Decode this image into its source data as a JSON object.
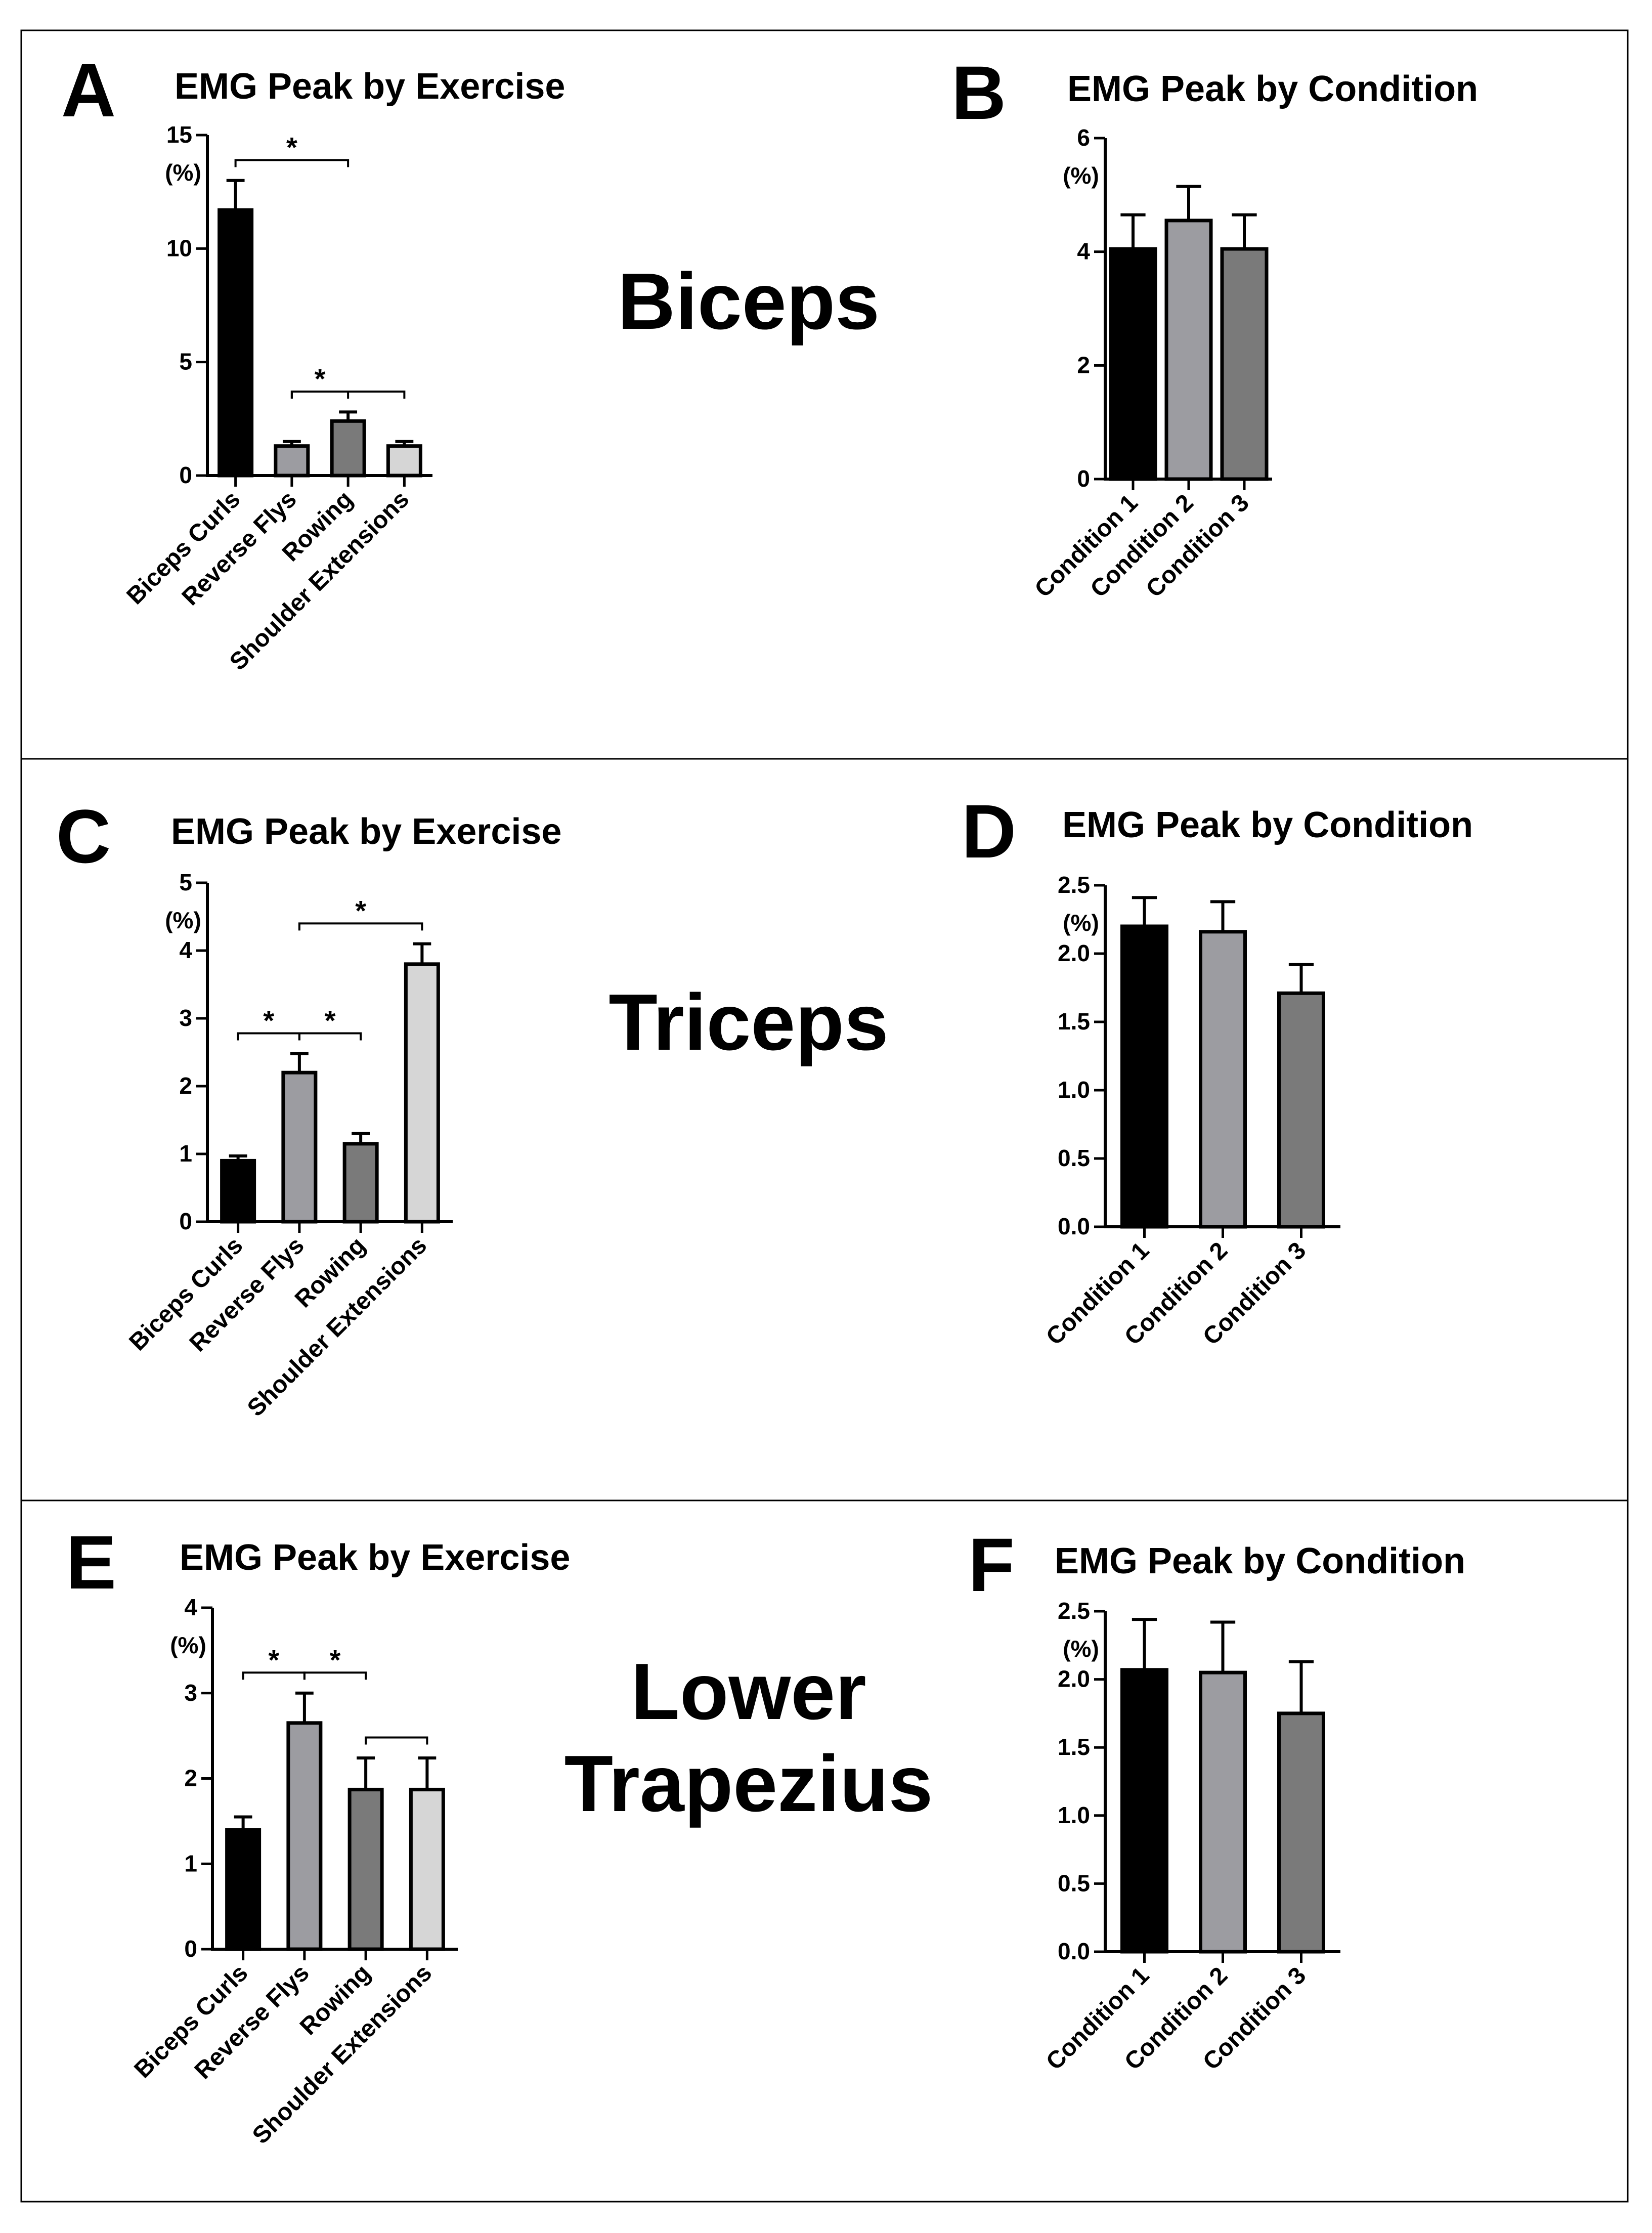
{
  "figure": {
    "rows": [
      {
        "muscle_label": "Biceps"
      },
      {
        "muscle_label": "Triceps"
      },
      {
        "muscle_label": "Lower\nTrapezius"
      }
    ]
  },
  "colors": {
    "c1": "#000000",
    "c2": "#9c9ca1",
    "c3": "#7a7a7a",
    "c4": "#d6d6d6",
    "cond1": "#000000",
    "cond2": "#9c9ca1",
    "cond3": "#7a7a7a"
  },
  "chart_data": [
    {
      "panel": "A",
      "type": "bar",
      "title": "EMG Peak by Exercise",
      "ylabel": "(%)",
      "categories": [
        "Biceps Curls",
        "Reverse Flys",
        "Rowing",
        "Shoulder Extensions"
      ],
      "values": [
        11.7,
        1.3,
        2.4,
        1.3
      ],
      "errors": [
        1.3,
        0.2,
        0.4,
        0.2
      ],
      "ylim": [
        0,
        15
      ],
      "yticks": [
        "0",
        "5",
        "10",
        "15"
      ],
      "significance": [
        {
          "from": 0,
          "to": 2,
          "label": "*"
        },
        {
          "from": 1,
          "to": 3,
          "label": ""
        },
        {
          "from": 1,
          "to": 2,
          "label": "*"
        }
      ]
    },
    {
      "panel": "B",
      "type": "bar",
      "title": "EMG Peak by Condition",
      "ylabel": "(%)",
      "categories": [
        "Condition 1",
        "Condition 2",
        "Condition 3"
      ],
      "values": [
        4.05,
        4.55,
        4.05
      ],
      "errors": [
        0.6,
        0.6,
        0.6
      ],
      "ylim": [
        0,
        6
      ],
      "yticks": [
        "0",
        "2",
        "4",
        "6"
      ],
      "significance": []
    },
    {
      "panel": "C",
      "type": "bar",
      "title": "EMG Peak by Exercise",
      "ylabel": "(%)",
      "categories": [
        "Biceps Curls",
        "Reverse Flys",
        "Rowing",
        "Shoulder Extensions"
      ],
      "values": [
        0.9,
        2.2,
        1.15,
        3.8
      ],
      "errors": [
        0.07,
        0.28,
        0.15,
        0.3
      ],
      "ylim": [
        0,
        5
      ],
      "yticks": [
        "0",
        "1",
        "2",
        "3",
        "4",
        "5"
      ],
      "significance": [
        {
          "from": 1,
          "to": 3,
          "label": "*"
        },
        {
          "from": 0,
          "to": 2,
          "label": ""
        },
        {
          "from": 0,
          "to": 1,
          "label": "*"
        },
        {
          "from": 1,
          "to": 2,
          "label": "*"
        }
      ]
    },
    {
      "panel": "D",
      "type": "bar",
      "title": "EMG Peak by Condition",
      "ylabel": "(%)",
      "categories": [
        "Condition 1",
        "Condition 2",
        "Condition 3"
      ],
      "values": [
        2.2,
        2.16,
        1.71
      ],
      "errors": [
        0.21,
        0.22,
        0.21
      ],
      "ylim": [
        0,
        2.5
      ],
      "yticks": [
        "0.0",
        "0.5",
        "1.0",
        "1.5",
        "2.0",
        "2.5"
      ],
      "significance": []
    },
    {
      "panel": "E",
      "type": "bar",
      "title": "EMG Peak by Exercise",
      "ylabel": "(%)",
      "categories": [
        "Biceps Curls",
        "Reverse Flys",
        "Rowing",
        "Shoulder Extensions"
      ],
      "values": [
        1.4,
        2.65,
        1.87,
        1.87
      ],
      "errors": [
        0.15,
        0.35,
        0.37,
        0.37
      ],
      "ylim": [
        0,
        4
      ],
      "yticks": [
        "0",
        "1",
        "2",
        "3",
        "4"
      ],
      "significance": [
        {
          "from": 0,
          "to": 1,
          "label": "*"
        },
        {
          "from": 1,
          "to": 2,
          "label": "*"
        },
        {
          "from": 2,
          "to": 3,
          "label": ""
        }
      ]
    },
    {
      "panel": "F",
      "type": "bar",
      "title": "EMG Peak by Condition",
      "ylabel": "(%)",
      "categories": [
        "Condition 1",
        "Condition 2",
        "Condition 3"
      ],
      "values": [
        2.07,
        2.05,
        1.75
      ],
      "errors": [
        0.37,
        0.37,
        0.38
      ],
      "ylim": [
        0,
        2.5
      ],
      "yticks": [
        "0.0",
        "0.5",
        "1.0",
        "1.5",
        "2.0",
        "2.5"
      ],
      "significance": []
    }
  ]
}
